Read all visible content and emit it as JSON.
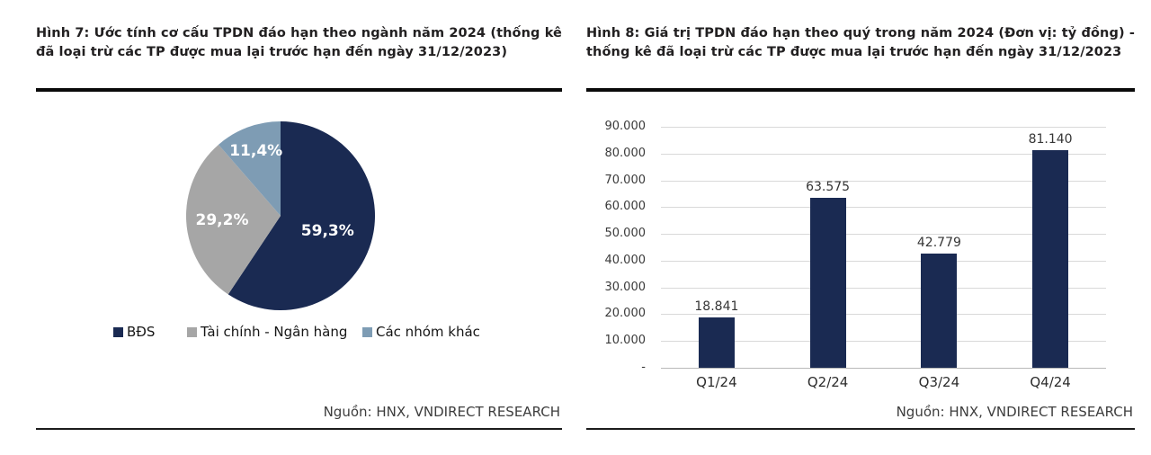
{
  "figure7": {
    "title": "Hình 7: Ước tính cơ cấu TPDN đáo hạn theo ngành năm 2024 (thống kê đã loại trừ các TP được mua lại trước hạn đến ngày 31/12/2023)",
    "source": "Nguồn: HNX, VNDIRECT RESEARCH"
  },
  "figure8": {
    "title": "Hình 8: Giá trị TPDN đáo hạn theo quý trong năm 2024 (Đơn vị: tỷ đồng) - thống kê đã loại trừ các TP được mua lại trước hạn đến ngày 31/12/2023",
    "source": "Nguồn: HNX, VNDIRECT RESEARCH"
  },
  "chart_data": [
    {
      "type": "pie",
      "title": "Ước tính cơ cấu TPDN đáo hạn theo ngành năm 2024",
      "labels": [
        "BĐS",
        "Tài chính - Ngân hàng",
        "Các nhóm khác"
      ],
      "values": [
        59.3,
        29.2,
        11.4
      ],
      "value_labels": [
        "59,3%",
        "29,2%",
        "11,4%"
      ],
      "colors": [
        "#1a2a52",
        "#a6a6a6",
        "#7e9cb4"
      ],
      "start_angle_deg": 0,
      "direction": "clockwise",
      "legend_position": "bottom"
    },
    {
      "type": "bar",
      "title": "Giá trị TPDN đáo hạn theo quý trong năm 2024 (tỷ đồng)",
      "categories": [
        "Q1/24",
        "Q2/24",
        "Q3/24",
        "Q4/24"
      ],
      "values": [
        18841,
        63575,
        42779,
        81140
      ],
      "value_labels": [
        "18.841",
        "63.575",
        "42.779",
        "81.140"
      ],
      "ylim": [
        0,
        90000
      ],
      "y_step": 10000,
      "y_tick_labels": [
        "-",
        "10.000",
        "20.000",
        "30.000",
        "40.000",
        "50.000",
        "60.000",
        "70.000",
        "80.000",
        "90.000"
      ],
      "bar_color": "#1a2a52",
      "grid": true,
      "legend_position": "none"
    }
  ]
}
